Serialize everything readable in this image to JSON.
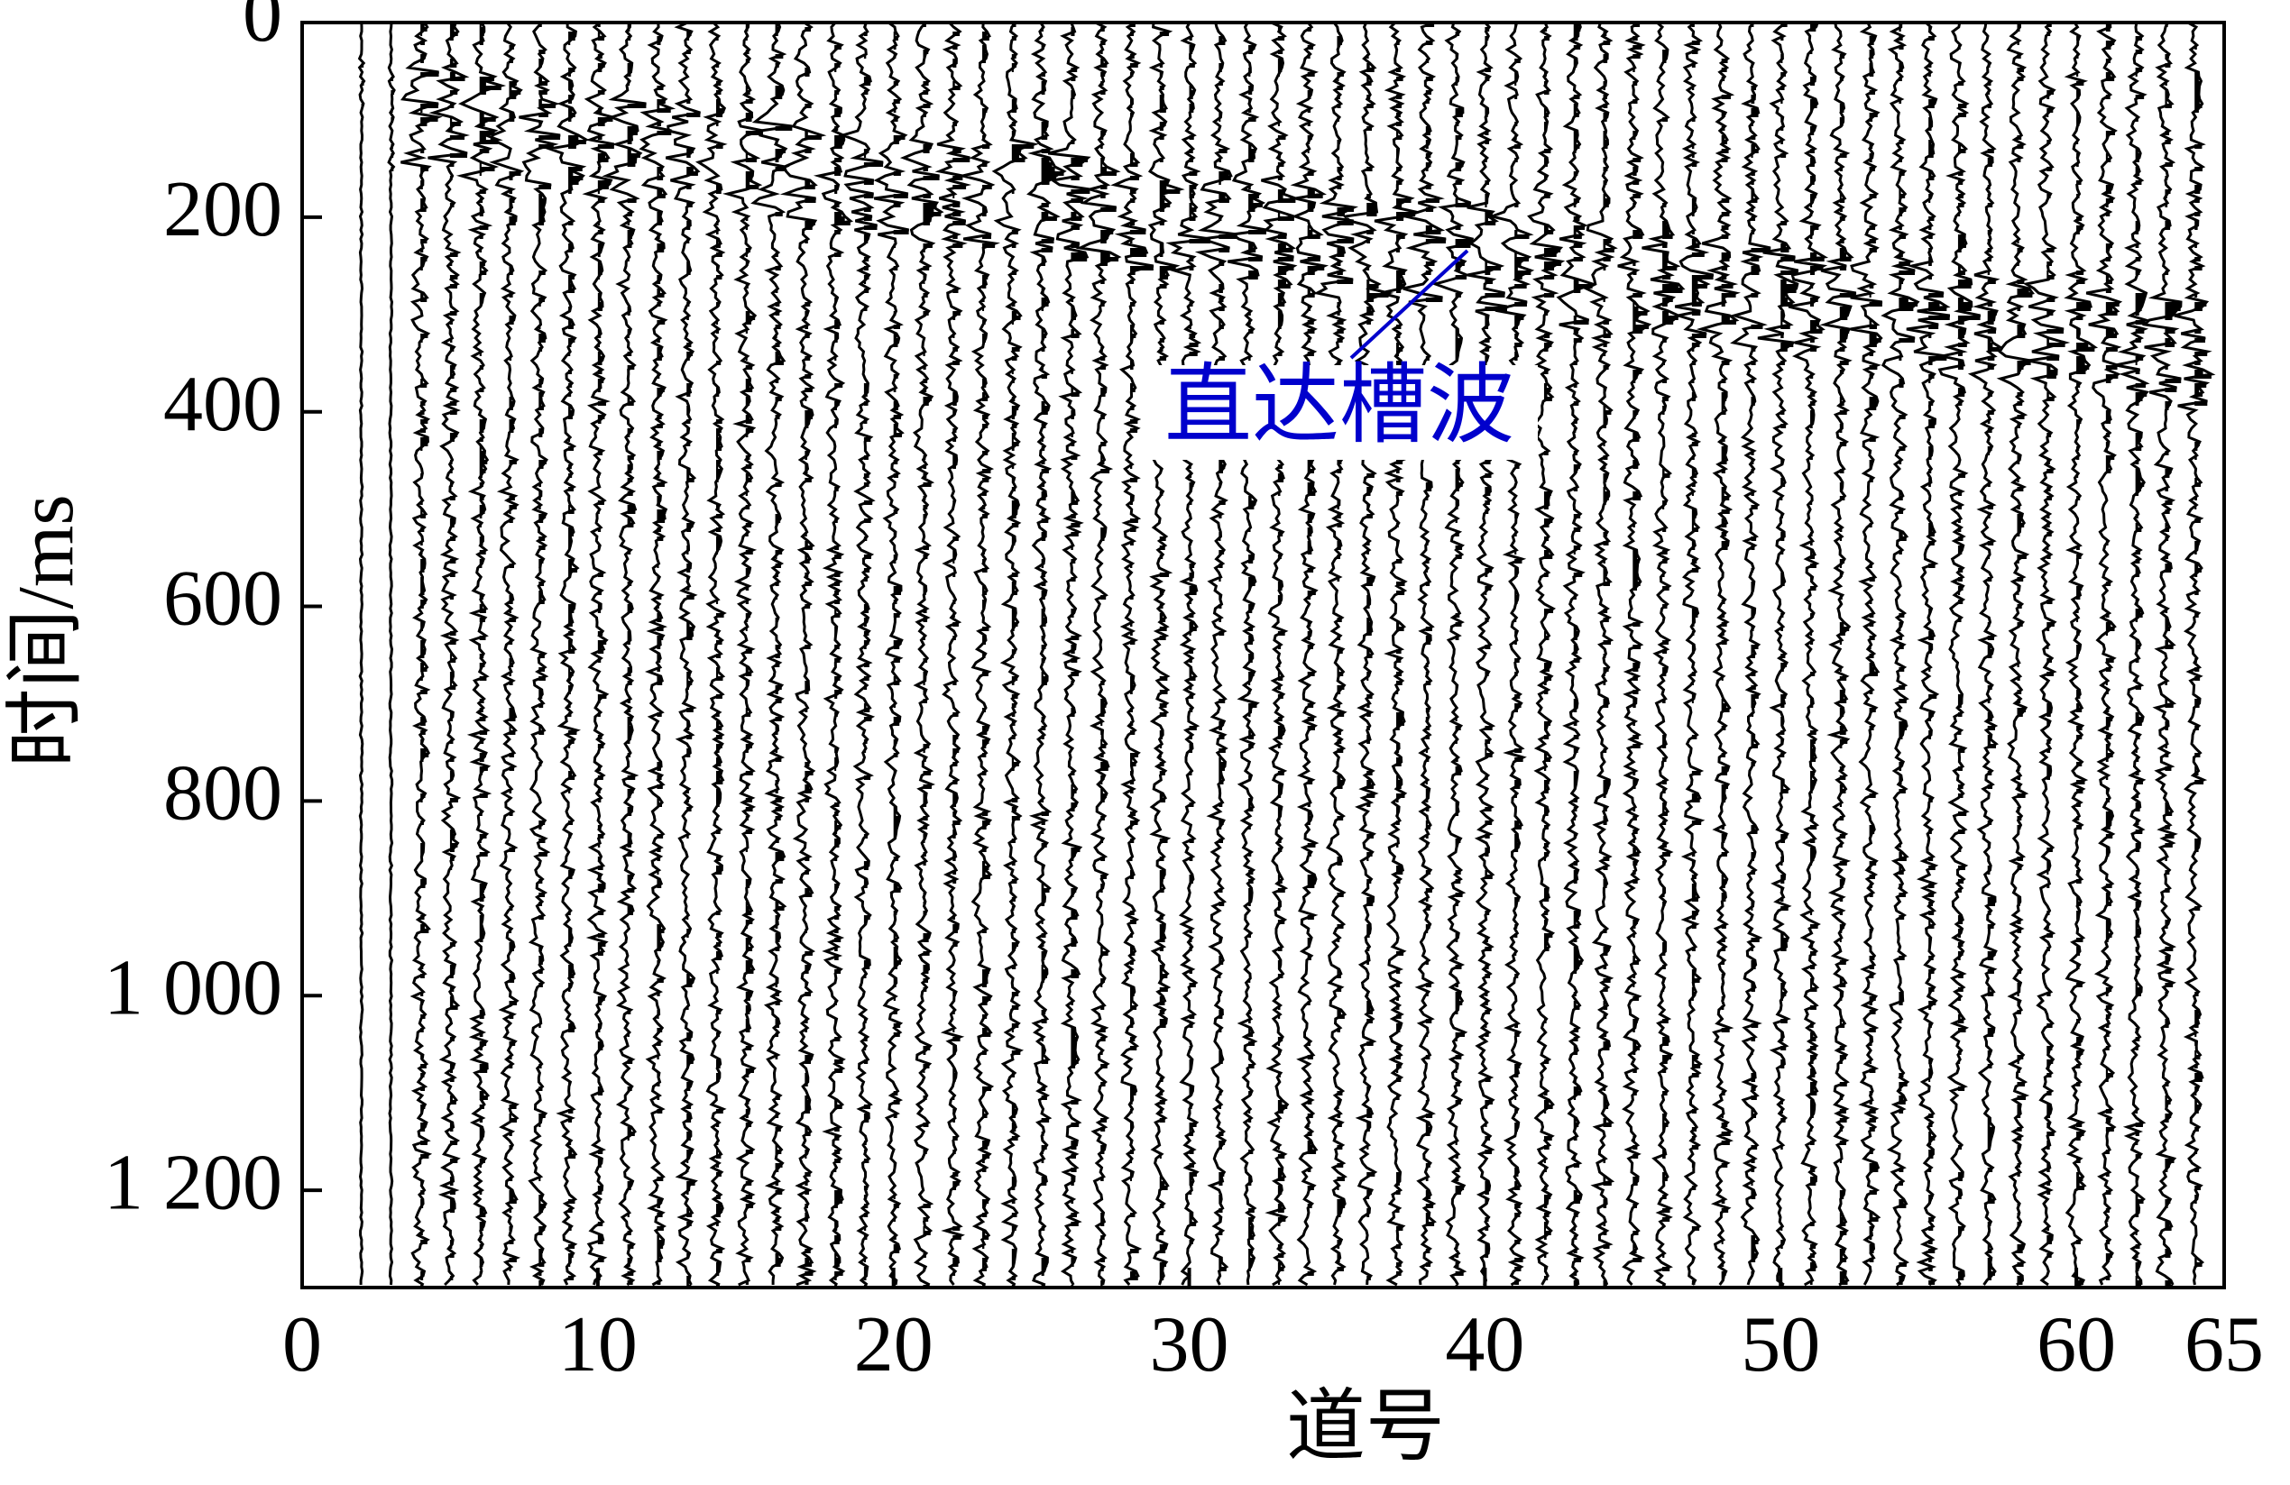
{
  "chart_data": {
    "type": "seismic",
    "x_label": "道号",
    "y_label": "时间/ms",
    "xlim": [
      0,
      65
    ],
    "xticks": [
      0,
      10,
      20,
      30,
      40,
      50,
      60,
      65
    ],
    "ylim": [
      0,
      1300
    ],
    "yticks": [
      0,
      200,
      400,
      600,
      800,
      {
        "value": 1000,
        "label": "1 000"
      },
      {
        "value": 1200,
        "label": "1 200"
      }
    ],
    "y_inverted": true,
    "annotation": {
      "text": "直达槽波",
      "color": "#0000cc"
    }
  }
}
